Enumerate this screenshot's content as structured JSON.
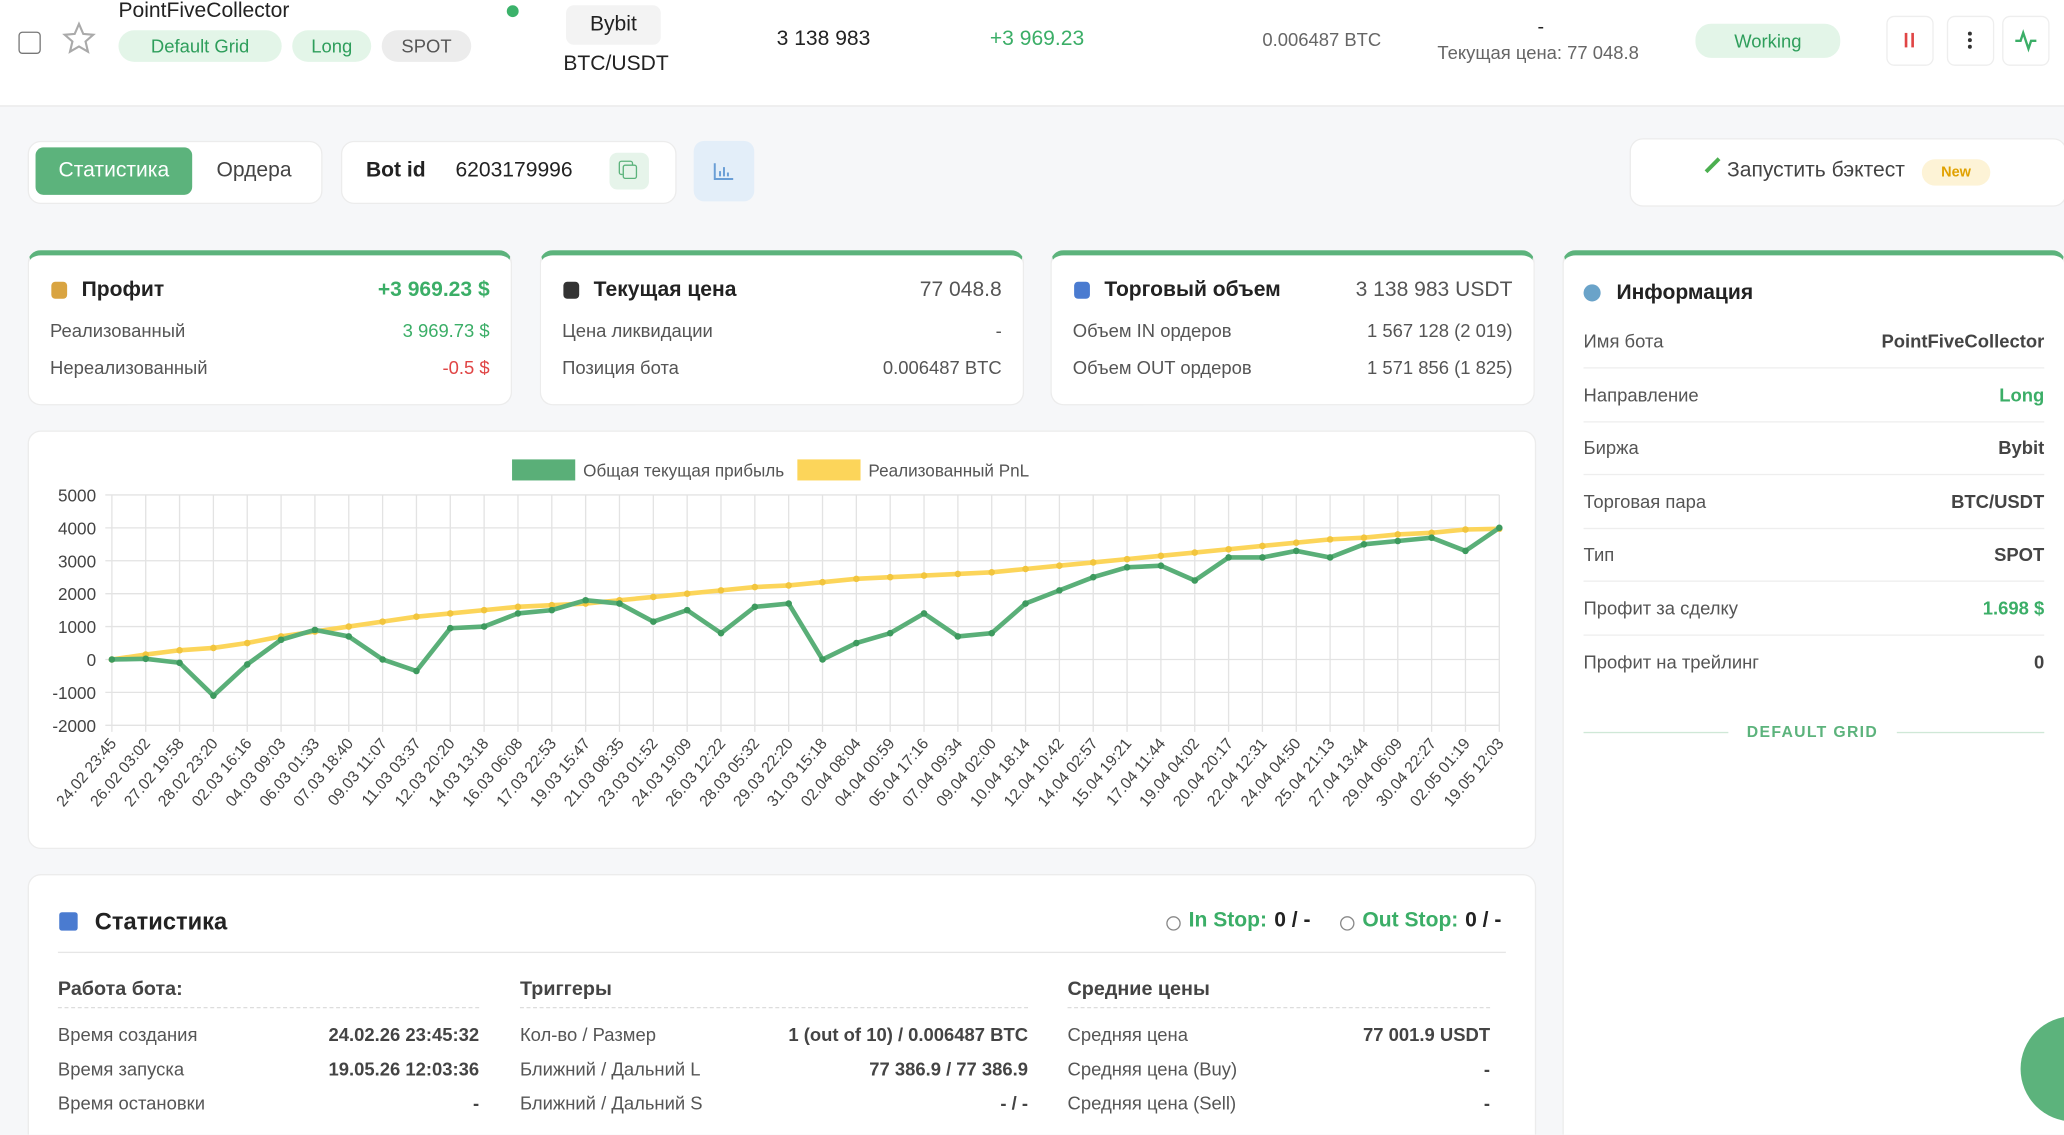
{
  "header": {
    "bot_name": "PointFiveCollector",
    "tags": [
      "Default Grid",
      "Long",
      "SPOT"
    ],
    "exchange": "Bybit",
    "pair": "BTC/USDT",
    "volume": "3 138 983",
    "profit": "+3 969.23",
    "position": "0.006487 BTC",
    "liquidation": "-",
    "current_price": "Текущая цена: 77 048.8",
    "status": "Working"
  },
  "tabs": [
    "Статистика",
    "Ордера"
  ],
  "bot_id": {
    "label": "Bot id",
    "value": "6203179996"
  },
  "backtest": {
    "label": "Запустить бэктест",
    "badge": "New"
  },
  "cards": [
    {
      "title": "Профит",
      "value": "+3 969.23 $",
      "rows": [
        [
          "Реализованный",
          "3 969.73 $"
        ],
        [
          "Нереализованный",
          "-0.5 $"
        ]
      ]
    },
    {
      "title": "Текущая цена",
      "value": "77 048.8",
      "rows": [
        [
          "Цена ликвидации",
          "-"
        ],
        [
          "Позиция бота",
          "0.006487 BTC"
        ]
      ]
    },
    {
      "title": "Торговый объем",
      "value": "3 138 983 USDT",
      "rows": [
        [
          "Объем IN ордеров",
          "1 567 128 (2 019)"
        ],
        [
          "Объем OUT ордеров",
          "1 571 856 (1 825)"
        ]
      ]
    }
  ],
  "chart_data": {
    "type": "line",
    "categories": [
      "24.02 23:45",
      "26.02 03:02",
      "27.02 19:58",
      "28.02 23:20",
      "02.03 16:16",
      "04.03 09:03",
      "06.03 01:33",
      "07.03 18:40",
      "09.03 11:07",
      "11.03 03:37",
      "12.03 20:20",
      "14.03 13:18",
      "16.03 06:08",
      "17.03 22:53",
      "19.03 15:47",
      "21.03 08:35",
      "23.03 01:52",
      "24.03 19:09",
      "26.03 12:22",
      "28.03 05:32",
      "29.03 22:20",
      "31.03 15:18",
      "02.04 08:04",
      "04.04 00:59",
      "05.04 17:16",
      "07.04 09:34",
      "09.04 02:00",
      "10.04 18:14",
      "12.04 10:42",
      "14.04 02:57",
      "15.04 19:21",
      "17.04 11:44",
      "19.04 04:02",
      "20.04 20:17",
      "22.04 12:31",
      "24.04 04:50",
      "25.04 21:13",
      "27.04 13:44",
      "29.04 06:09",
      "30.04 22:27",
      "02.05 01:19",
      "19.05 12:03"
    ],
    "series": [
      {
        "name": "Общая текущая прибыль",
        "color": "#5aaf78",
        "values": [
          0,
          20,
          -100,
          -1100,
          -150,
          600,
          900,
          700,
          0,
          -350,
          950,
          1000,
          1400,
          1500,
          1800,
          1700,
          1150,
          1500,
          800,
          1600,
          1700,
          0,
          500,
          800,
          1400,
          700,
          800,
          1700,
          2100,
          2500,
          2800,
          2850,
          2400,
          3100,
          3100,
          3300,
          3100,
          3500,
          3600,
          3700,
          3300,
          4000
        ]
      },
      {
        "name": "Реализованный PnL",
        "color": "#fcd55a",
        "values": [
          0,
          150,
          280,
          350,
          500,
          700,
          850,
          1000,
          1150,
          1300,
          1400,
          1500,
          1600,
          1650,
          1700,
          1800,
          1900,
          2000,
          2100,
          2200,
          2250,
          2350,
          2450,
          2500,
          2550,
          2600,
          2650,
          2750,
          2850,
          2950,
          3050,
          3150,
          3250,
          3350,
          3450,
          3550,
          3650,
          3700,
          3800,
          3850,
          3950,
          3970
        ]
      }
    ],
    "ylim": [
      -2000,
      5000
    ],
    "yticks": [
      -2000,
      -1000,
      0,
      1000,
      2000,
      3000,
      4000,
      5000
    ],
    "grid": true,
    "legend": "top"
  },
  "info": {
    "title": "Информация",
    "rows": [
      [
        "Имя бота",
        "PointFiveCollector"
      ],
      [
        "Направление",
        "Long"
      ],
      [
        "Биржа",
        "Bybit"
      ],
      [
        "Торговая пара",
        "BTC/USDT"
      ],
      [
        "Тип",
        "SPOT"
      ],
      [
        "Профит за сделку",
        "1.698 $"
      ],
      [
        "Профит на трейлинг",
        "0"
      ]
    ],
    "footer": "DEFAULT GRID"
  },
  "stats": {
    "title": "Статистика",
    "in_stop": {
      "label": "In Stop:",
      "value": "0 / -"
    },
    "out_stop": {
      "label": "Out Stop:",
      "value": "0 / -"
    },
    "columns": [
      {
        "title": "Работа бота:",
        "rows": [
          [
            "Время создания",
            "24.02.26 23:45:32"
          ],
          [
            "Время запуска",
            "19.05.26 12:03:36"
          ],
          [
            "Время остановки",
            "-"
          ]
        ]
      },
      {
        "title": "Триггеры",
        "rows": [
          [
            "Кол-во / Размер",
            "1 (out of 10) / 0.006487 BTC"
          ],
          [
            "Ближний / Дальний L",
            "77 386.9 / 77 386.9"
          ],
          [
            "Ближний / Дальний S",
            "- / -"
          ]
        ]
      },
      {
        "title": "Средние цены",
        "rows": [
          [
            "Средняя цена",
            "77 001.9 USDT"
          ],
          [
            "Средняя цена (Buy)",
            "-"
          ],
          [
            "Средняя цена (Sell)",
            "-"
          ]
        ]
      }
    ]
  }
}
